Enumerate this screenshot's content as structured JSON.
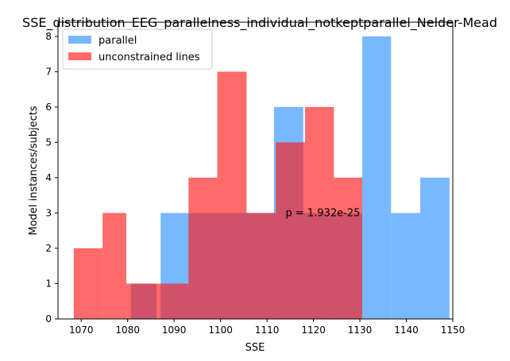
{
  "chart_data": {
    "type": "histogram",
    "title": "SSE_distribution_EEG_parallelness_individual_notkeptparallel_Nelder-Mead",
    "xlabel": "SSE",
    "ylabel": "Model instances/subjects",
    "xlim": [
      1065,
      1150
    ],
    "ylim": [
      0,
      8.4
    ],
    "xticks": [
      1070,
      1080,
      1090,
      1100,
      1110,
      1120,
      1130,
      1140,
      1150
    ],
    "yticks": [
      0,
      1,
      2,
      3,
      4,
      5,
      6,
      7,
      8
    ],
    "grid": false,
    "legend_position": "top-left",
    "annotation": "p = 1.932e-25",
    "annotation_position": [
      1114,
      3.0
    ],
    "series": [
      {
        "name": "parallel",
        "color": "#1E88FF",
        "opacity": 0.6,
        "bins": [
          {
            "x0": 1080.7,
            "x1": 1086.2,
            "count": 1
          },
          {
            "x0": 1087.1,
            "x1": 1092.6,
            "count": 3
          },
          {
            "x0": 1092.6,
            "x1": 1098.8,
            "count": 3
          },
          {
            "x0": 1098.8,
            "x1": 1105.2,
            "count": 3
          },
          {
            "x0": 1105.2,
            "x1": 1111.5,
            "count": 3
          },
          {
            "x0": 1111.5,
            "x1": 1117.8,
            "count": 6
          },
          {
            "x0": 1117.8,
            "x1": 1124.1,
            "count": 3
          },
          {
            "x0": 1124.1,
            "x1": 1130.5,
            "count": 3
          },
          {
            "x0": 1130.5,
            "x1": 1136.7,
            "count": 8
          },
          {
            "x0": 1136.7,
            "x1": 1143.0,
            "count": 3
          },
          {
            "x0": 1143.0,
            "x1": 1149.3,
            "count": 4
          }
        ]
      },
      {
        "name": "unconstrained lines",
        "color": "#FF1A1A",
        "opacity": 0.65,
        "bins": [
          {
            "x0": 1068.4,
            "x1": 1074.6,
            "count": 2
          },
          {
            "x0": 1074.6,
            "x1": 1079.7,
            "count": 3
          },
          {
            "x0": 1079.7,
            "x1": 1086.8,
            "count": 1
          },
          {
            "x0": 1086.8,
            "x1": 1093.1,
            "count": 1
          },
          {
            "x0": 1093.1,
            "x1": 1099.3,
            "count": 4
          },
          {
            "x0": 1099.3,
            "x1": 1105.6,
            "count": 7
          },
          {
            "x0": 1105.6,
            "x1": 1111.9,
            "count": 3
          },
          {
            "x0": 1111.9,
            "x1": 1118.2,
            "count": 5
          },
          {
            "x0": 1118.2,
            "x1": 1124.4,
            "count": 6
          },
          {
            "x0": 1124.4,
            "x1": 1130.5,
            "count": 4
          }
        ]
      }
    ]
  }
}
